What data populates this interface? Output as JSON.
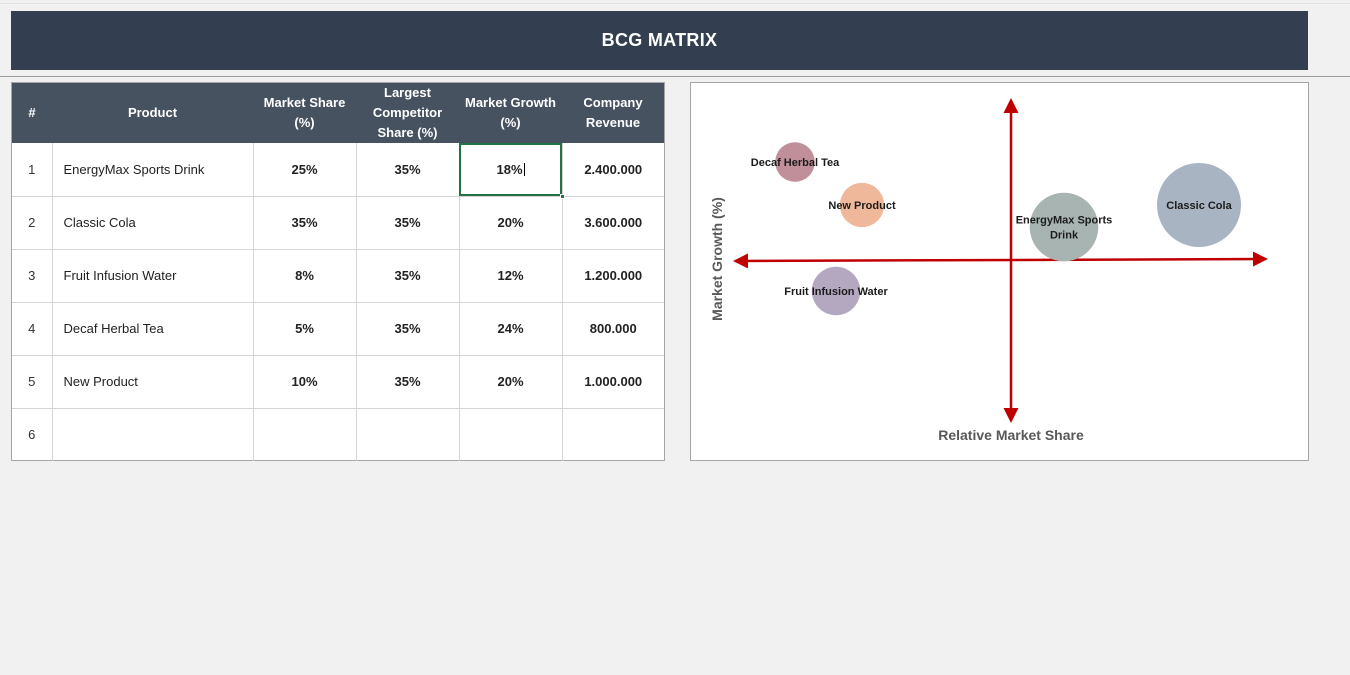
{
  "title": "BCG MATRIX",
  "table": {
    "headers": [
      "#",
      "Product",
      "Market Share (%)",
      "Largest Competitor Share (%)",
      "Market Growth (%)",
      "Company Revenue"
    ],
    "rows": [
      {
        "num": "1",
        "product": "EnergyMax Sports Drink",
        "share": "25%",
        "competitor": "35%",
        "growth": "18%",
        "revenue": "2.400.000"
      },
      {
        "num": "2",
        "product": "Classic Cola",
        "share": "35%",
        "competitor": "35%",
        "growth": "20%",
        "revenue": "3.600.000"
      },
      {
        "num": "3",
        "product": "Fruit Infusion Water",
        "share": "8%",
        "competitor": "35%",
        "growth": "12%",
        "revenue": "1.200.000"
      },
      {
        "num": "4",
        "product": "Decaf Herbal Tea",
        "share": "5%",
        "competitor": "35%",
        "growth": "24%",
        "revenue": "800.000"
      },
      {
        "num": "5",
        "product": "New Product",
        "share": "10%",
        "competitor": "35%",
        "growth": "20%",
        "revenue": "1.000.000"
      },
      {
        "num": "6",
        "product": "",
        "share": "",
        "competitor": "",
        "growth": "",
        "revenue": ""
      }
    ]
  },
  "chart_data": {
    "type": "scatter",
    "title": "",
    "xlabel": "Relative Market Share",
    "ylabel": "Market Growth (%)",
    "xlim": [
      0,
      2
    ],
    "ylim": [
      0,
      36
    ],
    "axis_color": "#c00000",
    "axis_cross": {
      "x": 1,
      "y": 18
    },
    "series": [
      {
        "label": "EnergyMax Sports Drink",
        "x": 0.714,
        "y": 18,
        "size": 2400000,
        "color": "#a7b4b2"
      },
      {
        "label": "Classic Cola",
        "x": 1.0,
        "y": 20,
        "size": 3600000,
        "color": "#a9b4c2"
      },
      {
        "label": "Fruit Infusion Water",
        "x": 0.229,
        "y": 12,
        "size": 1200000,
        "color": "#b4a7c0"
      },
      {
        "label": "Decaf Herbal Tea",
        "x": 0.143,
        "y": 24,
        "size": 800000,
        "color": "#c08f9a"
      },
      {
        "label": "New Product",
        "x": 0.286,
        "y": 20,
        "size": 1000000,
        "color": "#efb89a"
      }
    ]
  }
}
